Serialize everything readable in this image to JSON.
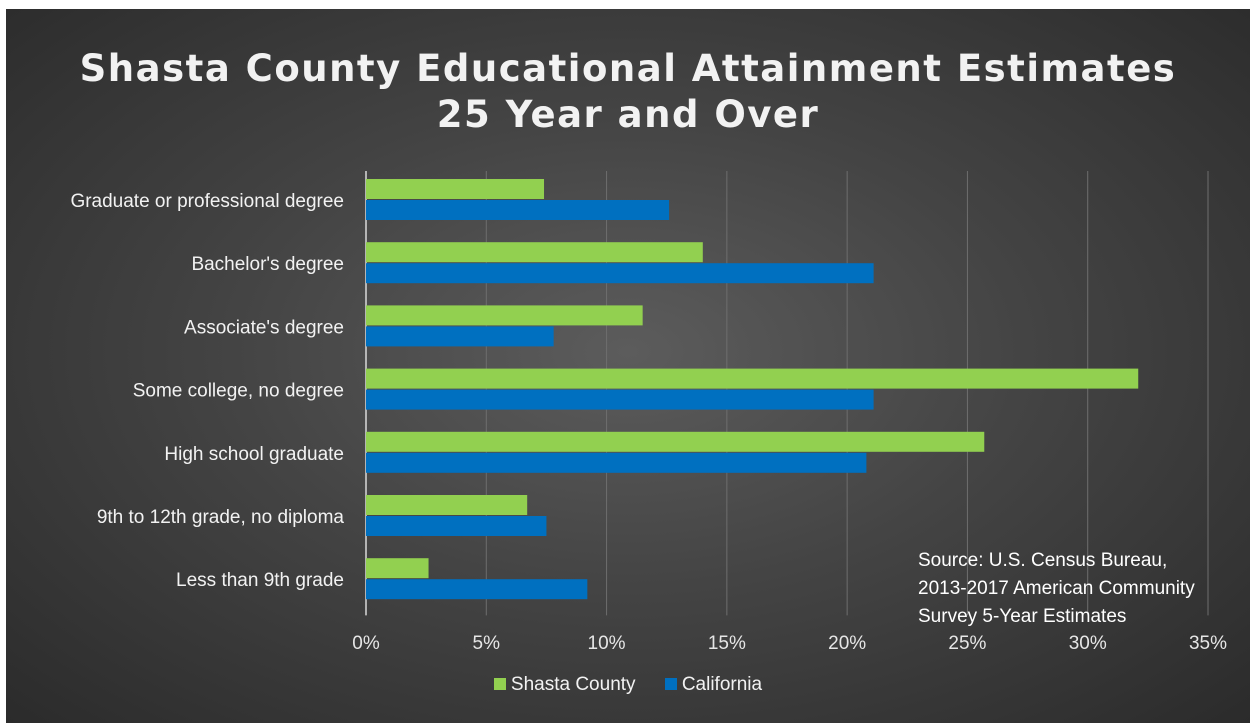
{
  "chart_data": {
    "type": "bar",
    "orientation": "horizontal",
    "title": "Shasta County Educational Attainment Estimates",
    "subtitle": "25 Year and Over",
    "categories": [
      "Graduate or professional degree",
      "Bachelor's degree",
      "Associate's degree",
      "Some college, no degree",
      "High school graduate",
      "9th to 12th grade, no diploma",
      "Less than 9th grade"
    ],
    "series": [
      {
        "name": "Shasta County",
        "color": "#92d050",
        "values": [
          7.4,
          14.0,
          11.5,
          32.1,
          25.7,
          6.7,
          2.6
        ]
      },
      {
        "name": "California",
        "color": "#0070c0",
        "values": [
          12.6,
          21.1,
          7.8,
          21.1,
          20.8,
          7.5,
          9.2
        ]
      }
    ],
    "xlim": [
      0,
      35
    ],
    "xticks": [
      "0%",
      "5%",
      "10%",
      "15%",
      "20%",
      "25%",
      "30%",
      "35%"
    ],
    "grid": true,
    "legend_position": "bottom",
    "annotation": "Source: U.S. Census Bureau, 2013-2017 American Community Survey 5-Year Estimates"
  }
}
